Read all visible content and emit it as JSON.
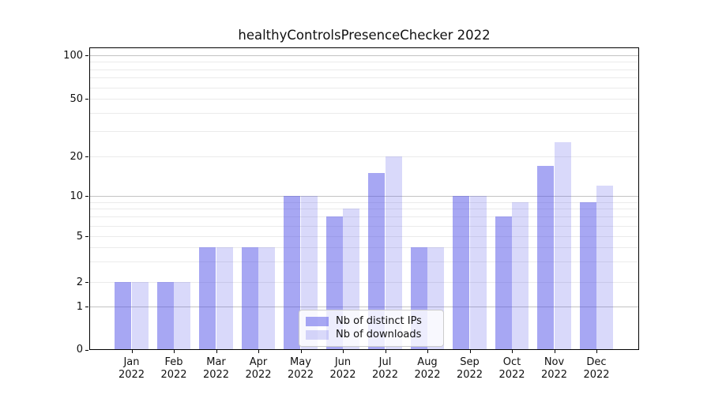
{
  "chart_data": {
    "type": "bar",
    "title": "healthyControlsPresenceChecker 2022",
    "categories": [
      "Jan",
      "Feb",
      "Mar",
      "Apr",
      "May",
      "Jun",
      "Jul",
      "Aug",
      "Sep",
      "Oct",
      "Nov",
      "Dec"
    ],
    "category_year": "2022",
    "series": [
      {
        "name": "Nb of distinct IPs",
        "color": "rgba(80,80,232,0.5)",
        "values": [
          2,
          2,
          4,
          4,
          10,
          7,
          15,
          4,
          10,
          7,
          17,
          9
        ]
      },
      {
        "name": "Nb of downloads",
        "color": "rgba(80,80,232,0.22)",
        "values": [
          2,
          2,
          4,
          4,
          10,
          8,
          20,
          4,
          10,
          9,
          25,
          12
        ]
      }
    ],
    "y_axis": {
      "scale": "symlog",
      "tick_labels": [
        "0",
        "1",
        "2",
        "5",
        "10",
        "20",
        "50",
        "100"
      ],
      "tick_values": [
        0,
        1,
        2,
        5,
        10,
        20,
        50,
        100
      ],
      "major_grid_values": [
        1,
        10,
        100
      ],
      "minor_grid_values": [
        2,
        3,
        4,
        5,
        6,
        7,
        8,
        9,
        20,
        30,
        40,
        50,
        60,
        70,
        80,
        90
      ],
      "range": [
        0,
        100
      ]
    },
    "legend": {
      "position": "lower-center-inside",
      "items": [
        "Nb of distinct IPs",
        "Nb of downloads"
      ]
    },
    "colors": {
      "bar_dark": "rgba(80,80,232,0.5)",
      "bar_light": "rgba(80,80,232,0.22)",
      "major_grid": "#c3c3c3",
      "minor_grid": "#ebebeb",
      "axis": "#000000",
      "text": "#111111",
      "background": "#ffffff"
    }
  }
}
